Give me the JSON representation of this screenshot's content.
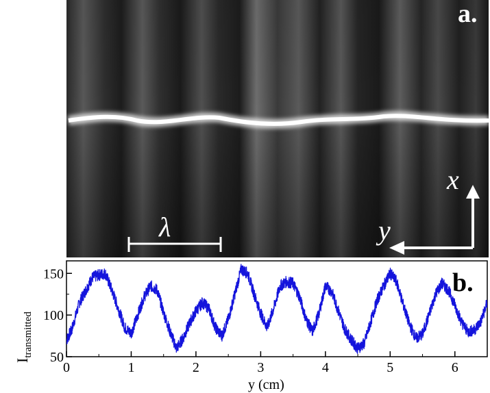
{
  "panel_a": {
    "label": "a.",
    "axis_x_label": "x",
    "axis_y_label": "y",
    "scale_label": "λ",
    "colors": {
      "background": "#1a1a1a",
      "bright_line": "#ffffff",
      "overlay": "#ffffff"
    }
  },
  "chart_data": {
    "type": "line",
    "panel_label": "b.",
    "xlabel": "y (cm)",
    "ylabel_main": "I",
    "ylabel_sub": "transmitted",
    "xlim": [
      0,
      6.5
    ],
    "ylim": [
      50,
      165
    ],
    "x_ticks": [
      0,
      1,
      2,
      3,
      4,
      5,
      6
    ],
    "y_ticks": [
      50,
      100,
      150
    ],
    "grid": false,
    "line_color": "#1414dc",
    "series": [
      {
        "x": [
          0,
          0.08,
          0.2,
          0.3,
          0.4,
          0.5,
          0.6,
          0.7,
          0.8,
          0.9,
          1.0,
          1.1,
          1.2,
          1.3,
          1.4,
          1.5,
          1.6,
          1.7,
          1.8,
          1.9,
          2.0,
          2.1,
          2.2,
          2.3,
          2.4,
          2.5,
          2.6,
          2.7,
          2.8,
          2.9,
          3.0,
          3.1,
          3.2,
          3.3,
          3.4,
          3.5,
          3.6,
          3.7,
          3.8,
          3.9,
          4.0,
          4.1,
          4.2,
          4.3,
          4.4,
          4.5,
          4.6,
          4.7,
          4.8,
          4.9,
          5.0,
          5.1,
          5.2,
          5.3,
          5.4,
          5.5,
          5.6,
          5.7,
          5.8,
          5.9,
          6.0,
          6.1,
          6.2,
          6.3,
          6.4,
          6.5
        ],
        "values": [
          70,
          82,
          115,
          130,
          145,
          148,
          150,
          130,
          108,
          85,
          78,
          100,
          122,
          135,
          130,
          103,
          80,
          60,
          72,
          90,
          105,
          115,
          108,
          85,
          75,
          95,
          125,
          155,
          150,
          125,
          102,
          85,
          108,
          135,
          140,
          138,
          122,
          95,
          80,
          102,
          135,
          128,
          105,
          83,
          70,
          60,
          66,
          92,
          118,
          135,
          150,
          140,
          113,
          88,
          72,
          77,
          100,
          125,
          138,
          130,
          112,
          92,
          80,
          82,
          92,
          115
        ]
      }
    ]
  }
}
